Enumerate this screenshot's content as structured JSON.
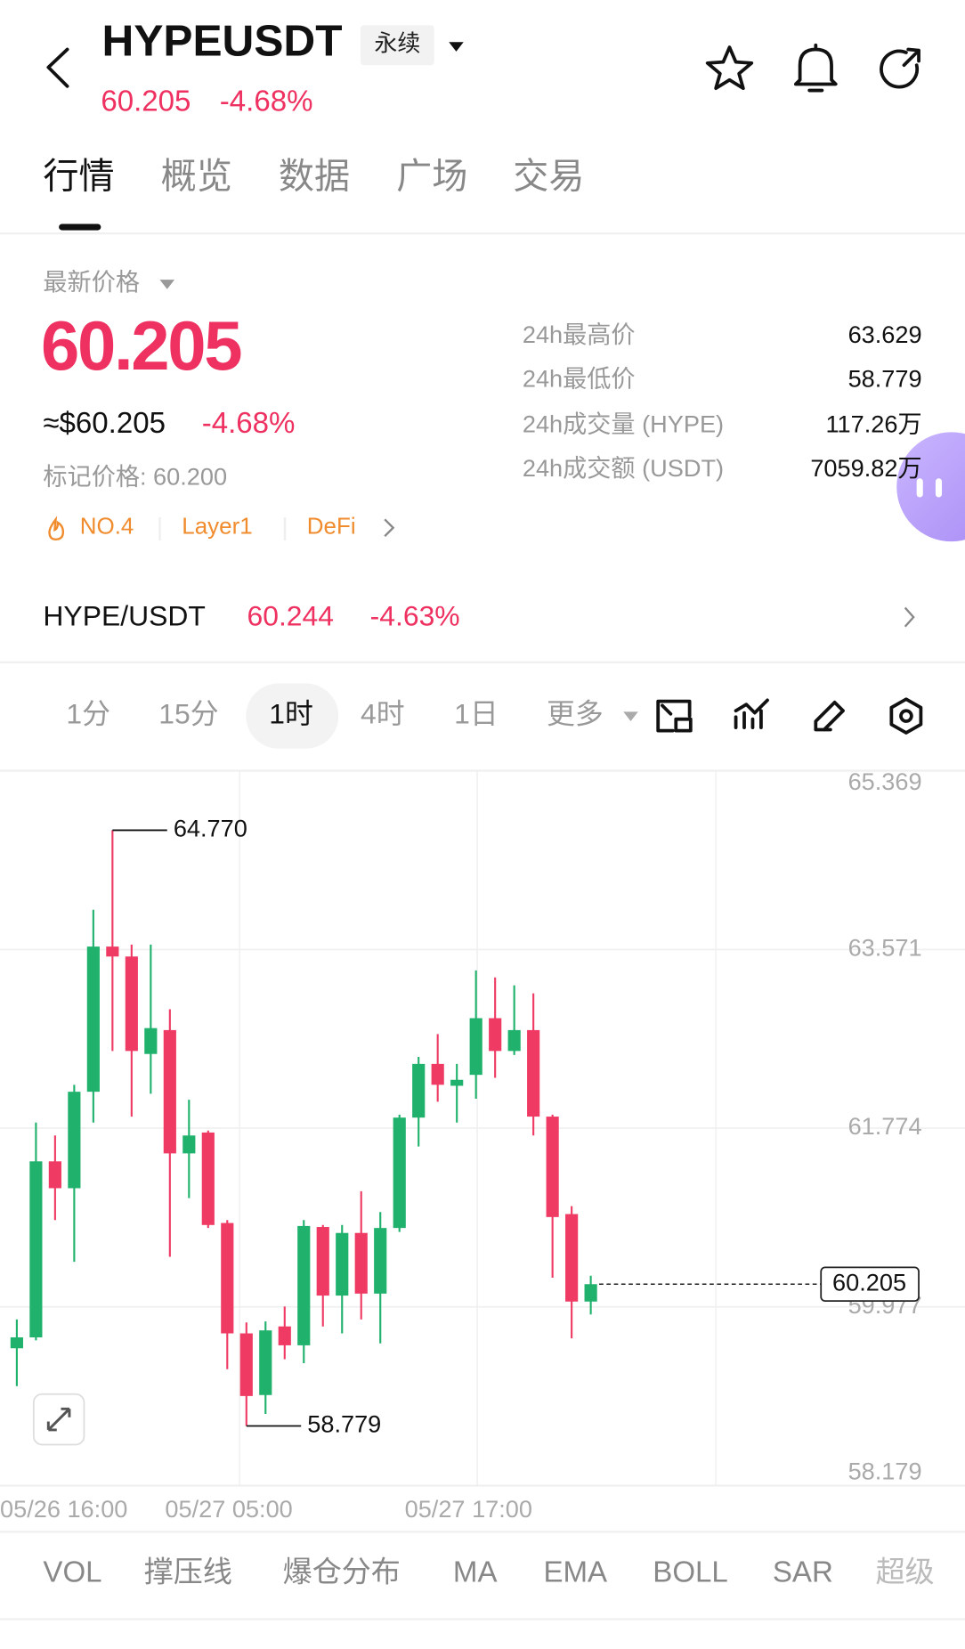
{
  "header": {
    "symbol": "HYPEUSDT",
    "contract": "永续",
    "price": "60.205",
    "change": "-4.68%"
  },
  "tabs": [
    "行情",
    "概览",
    "数据",
    "广场",
    "交易"
  ],
  "price_panel": {
    "label": "最新价格",
    "price": "60.205",
    "usd": "≈$60.205",
    "change": "-4.68%",
    "mark_price": "标记价格: 60.200",
    "tags": [
      "NO.4",
      "Layer1",
      "DeFi"
    ]
  },
  "stats": [
    [
      "24h最高价",
      "63.629"
    ],
    [
      "24h最低价",
      "58.779"
    ],
    [
      "24h成交量 (HYPE)",
      "117.26万"
    ],
    [
      "24h成交额 (USDT)",
      "7059.82万"
    ]
  ],
  "pair": {
    "name": "HYPE/USDT",
    "price": "60.244",
    "change": "-4.63%"
  },
  "intervals": [
    "1分",
    "15分",
    "1时",
    "4时",
    "1日",
    "更多"
  ],
  "chart_data": {
    "type": "candlestick",
    "open": [
      59.56,
      59.67,
      61.44,
      61.17,
      62.14,
      63.6,
      63.5,
      62.52,
      62.76,
      61.52,
      61.73,
      60.82,
      59.71,
      59.09,
      59.78,
      59.59,
      60.78,
      60.09,
      60.72,
      60.11,
      60.77,
      61.88,
      62.42,
      62.2,
      62.31,
      62.88,
      62.55,
      62.76,
      61.89,
      60.91,
      60.03
    ],
    "high": [
      59.85,
      61.83,
      61.7,
      62.21,
      63.97,
      64.77,
      63.62,
      63.62,
      62.97,
      62.06,
      61.75,
      60.85,
      59.82,
      59.83,
      59.98,
      60.85,
      60.8,
      60.8,
      61.14,
      60.93,
      61.91,
      62.49,
      62.72,
      62.42,
      63.36,
      63.29,
      63.21,
      63.13,
      61.91,
      60.99,
      60.29
    ],
    "low": [
      59.18,
      59.64,
      60.85,
      60.43,
      61.83,
      62.55,
      61.89,
      62.12,
      60.48,
      61.07,
      60.77,
      59.35,
      58.779,
      58.9,
      59.45,
      59.41,
      59.78,
      59.71,
      59.85,
      59.61,
      60.73,
      61.59,
      62.04,
      61.83,
      62.07,
      62.28,
      62.51,
      61.7,
      60.27,
      59.66,
      59.9
    ],
    "close": [
      59.67,
      61.44,
      61.17,
      62.14,
      63.6,
      63.5,
      62.55,
      62.78,
      61.52,
      61.7,
      60.8,
      59.71,
      59.08,
      59.74,
      59.59,
      60.79,
      60.09,
      60.72,
      60.11,
      60.77,
      61.88,
      62.42,
      62.21,
      62.26,
      62.88,
      62.55,
      62.76,
      61.89,
      60.88,
      60.03,
      60.205
    ],
    "up_color": "#20b26c",
    "down_color": "#ef3b64",
    "ylim": [
      58.179,
      65.369
    ],
    "yticks": [
      65.369,
      63.571,
      61.774,
      59.977,
      58.179
    ],
    "grid": true,
    "x_labels": [
      "05/26 16:00",
      "05/27 05:00",
      "05/27 17:00"
    ],
    "high_marker": {
      "value": 64.77,
      "label": "64.770"
    },
    "low_marker": 58.779,
    "last_price": 60.205
  },
  "indicators": [
    "VOL",
    "撑压线",
    "爆仓分布",
    "MA",
    "EMA",
    "BOLL",
    "SAR",
    "超级"
  ]
}
